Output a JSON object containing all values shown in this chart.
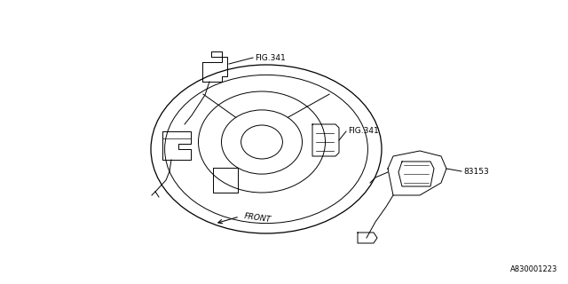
{
  "background_color": "#ffffff",
  "line_color": "#000000",
  "text_color": "#000000",
  "fig_width": 6.4,
  "fig_height": 3.2,
  "dpi": 100,
  "part_number": "A830001223",
  "labels": {
    "fig341_upper": "FIG.341",
    "fig341_center": "FIG.341",
    "part83153": "83153",
    "front": "FRONT"
  }
}
